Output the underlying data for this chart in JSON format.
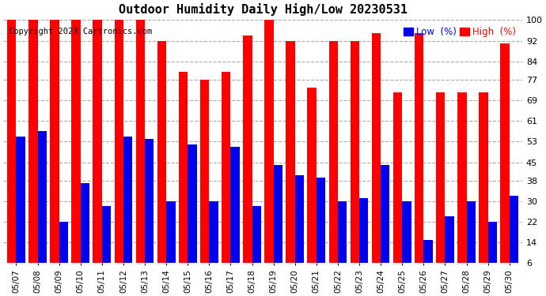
{
  "title": "Outdoor Humidity Daily High/Low 20230531",
  "copyright": "Copyright 2023 Cartronics.com",
  "legend_low": "Low  (%)",
  "legend_high": "High  (%)",
  "dates": [
    "05/07",
    "05/08",
    "05/09",
    "05/10",
    "05/11",
    "05/12",
    "05/13",
    "05/14",
    "05/15",
    "05/16",
    "05/17",
    "05/18",
    "05/19",
    "05/20",
    "05/21",
    "05/22",
    "05/23",
    "05/24",
    "05/25",
    "05/26",
    "05/27",
    "05/28",
    "05/29",
    "05/30"
  ],
  "high": [
    100,
    100,
    100,
    100,
    100,
    100,
    100,
    92,
    80,
    77,
    80,
    94,
    100,
    92,
    74,
    92,
    92,
    95,
    72,
    95,
    72,
    72,
    72,
    91
  ],
  "low": [
    55,
    57,
    22,
    37,
    28,
    55,
    54,
    30,
    52,
    30,
    51,
    28,
    44,
    40,
    39,
    30,
    31,
    44,
    30,
    15,
    24,
    30,
    22,
    32
  ],
  "high_color": "#ff0000",
  "low_color": "#0000ee",
  "bg_color": "#ffffff",
  "grid_color": "#aaaaaa",
  "yticks": [
    6,
    14,
    22,
    30,
    38,
    45,
    53,
    61,
    69,
    77,
    84,
    92,
    100
  ],
  "ylim": [
    6,
    100
  ],
  "title_fontsize": 11,
  "bar_width": 0.42
}
